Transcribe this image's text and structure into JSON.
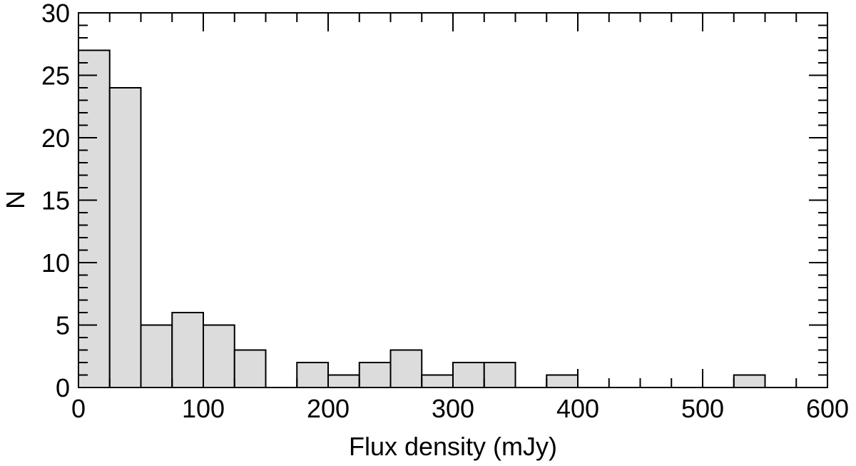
{
  "colors": {
    "bar_fill": "#dcdcdc",
    "bar_stroke": "#000000",
    "axis": "#000000",
    "background": "#ffffff"
  },
  "chart_data": {
    "type": "bar",
    "title": "",
    "xlabel": "Flux density (mJy)",
    "ylabel": "N",
    "xlim": [
      0,
      600
    ],
    "ylim": [
      0,
      30
    ],
    "x_ticks": [
      0,
      100,
      200,
      300,
      400,
      500,
      600
    ],
    "y_ticks": [
      0,
      5,
      10,
      15,
      20,
      25,
      30
    ],
    "x_tick_labels": [
      "0",
      "100",
      "200",
      "300",
      "400",
      "500",
      "600"
    ],
    "y_tick_labels": [
      "0",
      "5",
      "10",
      "15",
      "20",
      "25",
      "30"
    ],
    "x_minor_step": 25,
    "y_minor_step": 1,
    "bin_width": 25,
    "bin_edges": [
      0,
      25,
      50,
      75,
      100,
      125,
      150,
      175,
      200,
      225,
      250,
      275,
      300,
      325,
      350,
      375,
      400,
      425,
      450,
      475,
      500,
      525,
      550
    ],
    "values": [
      27,
      24,
      5,
      6,
      5,
      3,
      0,
      2,
      1,
      2,
      3,
      1,
      2,
      2,
      0,
      1,
      0,
      0,
      0,
      0,
      0,
      1
    ],
    "grid": false,
    "legend": "none"
  }
}
